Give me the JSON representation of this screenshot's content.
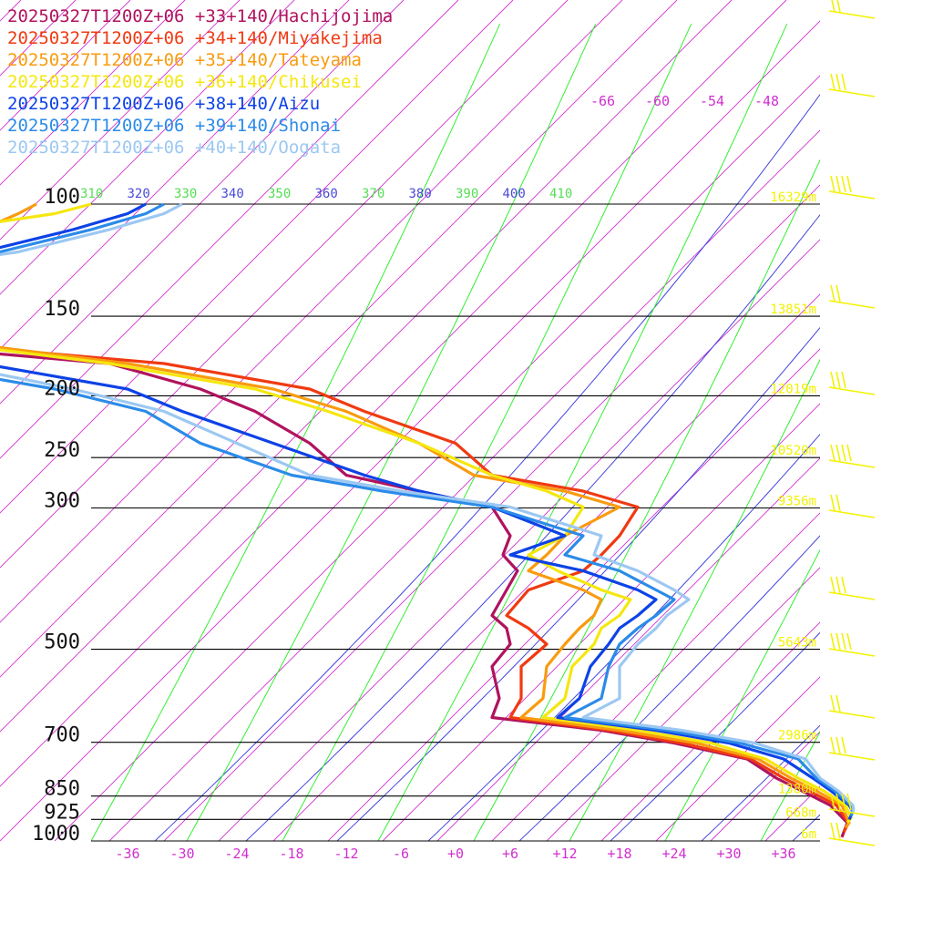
{
  "chart_data": {
    "type": "line",
    "title": "",
    "xlabel": "",
    "ylabel": "",
    "pressure_levels": [
      100,
      150,
      200,
      250,
      300,
      500,
      700,
      850,
      925,
      1000
    ],
    "pressure_labels": [
      "100",
      "150",
      "200",
      "250",
      "300",
      "500",
      "700",
      "850",
      "925",
      "1000"
    ],
    "height_labels": [
      {
        "p": 100,
        "text": "16329m"
      },
      {
        "p": 150,
        "text": "13851m"
      },
      {
        "p": 200,
        "text": "12019m"
      },
      {
        "p": 250,
        "text": "10520m"
      },
      {
        "p": 300,
        "text": "9356m"
      },
      {
        "p": 500,
        "text": "5643m"
      },
      {
        "p": 700,
        "text": "2986m"
      },
      {
        "p": 850,
        "text": "1380m"
      },
      {
        "p": 925,
        "text": "668m"
      },
      {
        "p": 1000,
        "text": "6m"
      }
    ],
    "x_ticks": [
      "-36",
      "-30",
      "-24",
      "-18",
      "-12",
      "-6",
      "+0",
      "+6",
      "+12",
      "+18",
      "+24",
      "+30",
      "+36"
    ],
    "theta_labels": [
      "310",
      "320",
      "330",
      "340",
      "350",
      "360",
      "370",
      "380",
      "390",
      "400",
      "410"
    ],
    "mixing_labels": [
      "-66",
      "-60",
      "-54",
      "-48"
    ],
    "colors": {
      "isobar": "#000000",
      "isotherm": "#d12fcf",
      "dry_adiabat": "#4444dd",
      "moist_adiabat": "#33ee33",
      "wind": "#f2f200"
    },
    "series": [
      {
        "name": "20250327T1200Z+06 +33+140/Hachijojima",
        "color": "#b0135e",
        "points": [
          [
            0.06,
            0.015
          ],
          [
            0.075,
            0.06
          ],
          [
            0.028,
            0.115
          ],
          [
            -0.05,
            0.16
          ],
          [
            -0.12,
            0.2
          ],
          [
            -0.2,
            0.26
          ],
          [
            -0.4,
            0.31
          ],
          [
            -0.6,
            0.35
          ],
          [
            -0.9,
            0.39
          ],
          [
            -0.88,
            0.45
          ],
          [
            -0.9,
            0.55
          ],
          [
            -0.85,
            0.62
          ],
          [
            -0.86,
            0.67
          ],
          [
            -0.9,
            0.71
          ],
          [
            -0.86,
            0.79
          ],
          [
            -0.83,
            0.85
          ],
          [
            -0.87,
            0.9
          ],
          [
            -0.85,
            0.96
          ],
          [
            -0.9,
            1.05
          ],
          [
            -1.1,
            1.1
          ],
          [
            -1.3,
            1.15
          ],
          [
            -1.4,
            1.25
          ],
          [
            -1.55,
            1.35
          ],
          [
            -1.7,
            1.42
          ],
          [
            -1.95,
            1.5
          ],
          [
            -2.45,
            1.55
          ],
          [
            -2.95,
            1.6
          ],
          [
            -3.35,
            1.62
          ],
          [
            -3.3,
            1.7
          ],
          [
            -3.3,
            1.72
          ],
          [
            -3.05,
            1.75
          ],
          [
            -2.7,
            1.8
          ],
          [
            -2.4,
            1.85
          ],
          [
            -2.3,
            1.92
          ],
          [
            -2.6,
            1.97
          ],
          [
            -2.5,
            2.0
          ]
        ]
      },
      {
        "name": "20250327T1200Z+06 +34+140/Miyakejima",
        "color": "#f03a12",
        "points": [
          [
            0.065,
            0.03
          ],
          [
            0.078,
            0.06
          ],
          [
            0.045,
            0.115
          ],
          [
            -0.03,
            0.16
          ],
          [
            -0.1,
            0.2
          ],
          [
            -0.19,
            0.26
          ],
          [
            -0.38,
            0.31
          ],
          [
            -0.58,
            0.35
          ],
          [
            -0.85,
            0.39
          ],
          [
            -0.82,
            0.45
          ],
          [
            -0.82,
            0.55
          ],
          [
            -0.75,
            0.62
          ],
          [
            -0.8,
            0.67
          ],
          [
            -0.86,
            0.71
          ],
          [
            -0.8,
            0.79
          ],
          [
            -0.65,
            0.85
          ],
          [
            -0.6,
            0.9
          ],
          [
            -0.55,
            0.96
          ],
          [
            -0.5,
            1.05
          ],
          [
            -0.65,
            1.1
          ],
          [
            -0.9,
            1.15
          ],
          [
            -1.0,
            1.25
          ],
          [
            -1.25,
            1.35
          ],
          [
            -1.4,
            1.42
          ],
          [
            -1.8,
            1.5
          ],
          [
            -2.3,
            1.55
          ],
          [
            -2.75,
            1.6
          ],
          [
            -3.2,
            1.62
          ],
          [
            -3.3,
            1.7
          ],
          [
            -3.3,
            1.75
          ],
          [
            -3.3,
            1.8
          ],
          [
            -3.1,
            1.85
          ],
          [
            -2.8,
            1.92
          ],
          [
            -2.5,
            1.97
          ],
          [
            -2.4,
            2.0
          ]
        ]
      },
      {
        "name": "20250327T1200Z+06 +35+140/Tateyama",
        "color": "#f99b0f",
        "points": [
          [
            0.07,
            0.045
          ],
          [
            0.08,
            0.06
          ],
          [
            0.06,
            0.115
          ],
          [
            -0.01,
            0.16
          ],
          [
            -0.08,
            0.2
          ],
          [
            -0.17,
            0.26
          ],
          [
            -0.34,
            0.31
          ],
          [
            -0.55,
            0.35
          ],
          [
            -0.82,
            0.39
          ],
          [
            -0.76,
            0.45
          ],
          [
            -0.75,
            0.55
          ],
          [
            -0.7,
            0.62
          ],
          [
            -0.66,
            0.67
          ],
          [
            -0.62,
            0.71
          ],
          [
            -0.6,
            0.76
          ],
          [
            -0.65,
            0.79
          ],
          [
            -0.8,
            0.85
          ],
          [
            -0.75,
            0.9
          ],
          [
            -0.7,
            0.96
          ],
          [
            -0.55,
            1.05
          ],
          [
            -0.7,
            1.1
          ],
          [
            -0.95,
            1.15
          ],
          [
            -1.1,
            1.25
          ],
          [
            -1.3,
            1.35
          ],
          [
            -1.5,
            1.42
          ],
          [
            -1.9,
            1.5
          ],
          [
            -2.25,
            1.55
          ],
          [
            -2.7,
            1.6
          ],
          [
            -3.2,
            1.62
          ],
          [
            -3.25,
            1.7
          ],
          [
            -3.1,
            1.75
          ],
          [
            -2.9,
            1.8
          ],
          [
            -2.6,
            1.85
          ],
          [
            -2.3,
            1.92
          ],
          [
            -2.2,
            1.97
          ],
          [
            -2.15,
            2.0
          ]
        ]
      },
      {
        "name": "20250327T1200Z+06 +36+140/Chikusei",
        "color": "#f5e710",
        "points": [
          [
            0.075,
            0.06
          ],
          [
            0.085,
            0.075
          ],
          [
            0.07,
            0.115
          ],
          [
            0.01,
            0.16
          ],
          [
            -0.06,
            0.2
          ],
          [
            -0.15,
            0.26
          ],
          [
            -0.3,
            0.31
          ],
          [
            -0.5,
            0.35
          ],
          [
            -0.76,
            0.39
          ],
          [
            -0.7,
            0.45
          ],
          [
            -0.68,
            0.55
          ],
          [
            -0.62,
            0.62
          ],
          [
            -0.6,
            0.67
          ],
          [
            -0.55,
            0.71
          ],
          [
            -0.52,
            0.76
          ],
          [
            -0.6,
            0.79
          ],
          [
            -0.72,
            0.85
          ],
          [
            -0.8,
            0.9
          ],
          [
            -0.7,
            0.96
          ],
          [
            -0.65,
            1.05
          ],
          [
            -0.75,
            1.1
          ],
          [
            -0.9,
            1.15
          ],
          [
            -1.1,
            1.25
          ],
          [
            -1.35,
            1.35
          ],
          [
            -1.55,
            1.42
          ],
          [
            -1.95,
            1.5
          ],
          [
            -2.3,
            1.55
          ],
          [
            -2.65,
            1.6
          ],
          [
            -3.1,
            1.62
          ],
          [
            -3.3,
            1.7
          ],
          [
            -3.2,
            1.75
          ],
          [
            -3.05,
            1.8
          ],
          [
            -2.8,
            1.85
          ],
          [
            -2.4,
            1.92
          ],
          [
            -2.1,
            1.97
          ],
          [
            -2.0,
            2.0
          ]
        ]
      },
      {
        "name": "20250327T1200Z+06 +38+140/Aizu",
        "color": "#0d42e6",
        "points": [
          [
            0.08,
            0.07
          ],
          [
            0.09,
            0.095
          ],
          [
            0.08,
            0.115
          ],
          [
            0.03,
            0.16
          ],
          [
            -0.02,
            0.2
          ],
          [
            -0.1,
            0.26
          ],
          [
            -0.25,
            0.31
          ],
          [
            -0.45,
            0.35
          ],
          [
            -0.72,
            0.39
          ],
          [
            -0.66,
            0.45
          ],
          [
            -0.63,
            0.55
          ],
          [
            -0.58,
            0.62
          ],
          [
            -0.55,
            0.67
          ],
          [
            -0.5,
            0.71
          ],
          [
            -0.45,
            0.76
          ],
          [
            -0.5,
            0.79
          ],
          [
            -0.65,
            0.85
          ],
          [
            -0.85,
            0.9
          ],
          [
            -0.7,
            0.96
          ],
          [
            -0.9,
            1.05
          ],
          [
            -1.1,
            1.1
          ],
          [
            -1.25,
            1.15
          ],
          [
            -1.5,
            1.25
          ],
          [
            -1.75,
            1.35
          ],
          [
            -1.9,
            1.42
          ],
          [
            -2.3,
            1.5
          ],
          [
            -2.75,
            1.55
          ],
          [
            -3.0,
            1.6
          ],
          [
            -3.2,
            1.62
          ],
          [
            -3.0,
            1.7
          ],
          [
            -2.9,
            1.75
          ],
          [
            -2.6,
            1.8
          ],
          [
            -2.3,
            1.85
          ],
          [
            -2.05,
            1.92
          ],
          [
            -1.9,
            1.97
          ],
          [
            -1.85,
            2.0
          ]
        ]
      },
      {
        "name": "20250327T1200Z+06 +39+140/Shonai",
        "color": "#2b8be8",
        "points": [
          [
            0.085,
            0.08
          ],
          [
            0.09,
            0.1
          ],
          [
            0.085,
            0.115
          ],
          [
            0.04,
            0.16
          ],
          [
            -0.01,
            0.2
          ],
          [
            -0.06,
            0.26
          ],
          [
            -0.22,
            0.31
          ],
          [
            -0.42,
            0.35
          ],
          [
            -0.7,
            0.39
          ],
          [
            -0.6,
            0.45
          ],
          [
            -0.58,
            0.55
          ],
          [
            -0.55,
            0.62
          ],
          [
            -0.5,
            0.67
          ],
          [
            -0.45,
            0.71
          ],
          [
            -0.4,
            0.76
          ],
          [
            -0.45,
            0.79
          ],
          [
            -0.55,
            0.85
          ],
          [
            -0.7,
            0.9
          ],
          [
            -0.65,
            0.96
          ],
          [
            -0.9,
            1.05
          ],
          [
            -1.2,
            1.1
          ],
          [
            -1.45,
            1.15
          ],
          [
            -1.7,
            1.25
          ],
          [
            -1.85,
            1.35
          ],
          [
            -2.1,
            1.42
          ],
          [
            -2.5,
            1.5
          ],
          [
            -2.8,
            1.55
          ],
          [
            -3.1,
            1.6
          ],
          [
            -3.15,
            1.62
          ],
          [
            -3.0,
            1.7
          ],
          [
            -2.85,
            1.75
          ],
          [
            -2.55,
            1.8
          ],
          [
            -2.25,
            1.85
          ],
          [
            -2.0,
            1.92
          ],
          [
            -1.85,
            1.97
          ],
          [
            -1.8,
            2.0
          ]
        ]
      },
      {
        "name": "20250327T1200Z+06 +40+140/Oogata",
        "color": "#9cc8f2",
        "points": [
          [
            0.09,
            0.09
          ],
          [
            0.092,
            0.105
          ],
          [
            0.09,
            0.115
          ],
          [
            0.05,
            0.16
          ],
          [
            0.0,
            0.2
          ],
          [
            -0.04,
            0.26
          ],
          [
            -0.18,
            0.31
          ],
          [
            -0.38,
            0.35
          ],
          [
            -0.65,
            0.39
          ],
          [
            -0.55,
            0.45
          ],
          [
            -0.55,
            0.55
          ],
          [
            -0.5,
            0.62
          ],
          [
            -0.45,
            0.67
          ],
          [
            -0.42,
            0.71
          ],
          [
            -0.36,
            0.76
          ],
          [
            -0.4,
            0.79
          ],
          [
            -0.5,
            0.85
          ],
          [
            -0.62,
            0.9
          ],
          [
            -0.6,
            0.96
          ],
          [
            -0.85,
            1.05
          ],
          [
            -1.15,
            1.1
          ],
          [
            -1.4,
            1.15
          ],
          [
            -1.6,
            1.25
          ],
          [
            -1.8,
            1.35
          ],
          [
            -2.05,
            1.42
          ],
          [
            -2.4,
            1.5
          ],
          [
            -2.7,
            1.55
          ],
          [
            -3.0,
            1.6
          ],
          [
            -3.1,
            1.62
          ],
          [
            -2.95,
            1.7
          ],
          [
            -2.8,
            1.75
          ],
          [
            -2.5,
            1.8
          ],
          [
            -2.2,
            1.85
          ],
          [
            -1.95,
            1.92
          ],
          [
            -1.8,
            1.97
          ],
          [
            -1.75,
            2.0
          ]
        ]
      }
    ]
  }
}
